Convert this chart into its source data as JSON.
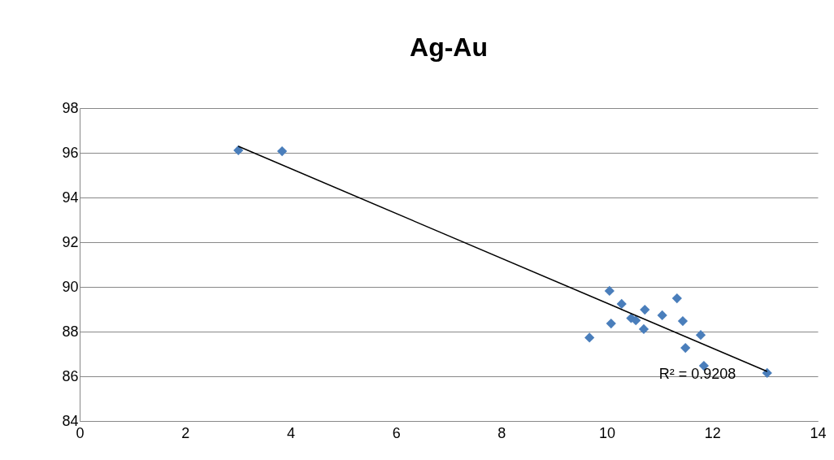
{
  "chart_data": {
    "type": "scatter",
    "title": "Ag-Au",
    "grid": "y",
    "xlim": [
      0,
      14
    ],
    "xticks": [
      0,
      2,
      4,
      6,
      8,
      10,
      12,
      14
    ],
    "ylim": [
      84,
      98
    ],
    "yticks": [
      84,
      86,
      88,
      90,
      92,
      94,
      96,
      98
    ],
    "series": [
      {
        "marker": "diamond",
        "color": "#4a7ebb",
        "x": [
          3.01,
          3.84,
          10.05,
          10.28,
          10.08,
          9.67,
          10.46,
          10.55,
          10.72,
          10.7,
          11.05,
          11.33,
          11.44,
          11.49,
          11.78,
          11.84,
          13.04
        ],
        "values": [
          96.11,
          96.07,
          89.82,
          89.24,
          88.36,
          87.73,
          88.6,
          88.5,
          88.98,
          88.11,
          88.73,
          89.49,
          88.47,
          87.27,
          87.85,
          86.47,
          86.15
        ]
      },
      {
        "type": "line",
        "color": "#000000",
        "x": [
          3.01,
          13.04
        ],
        "values": [
          96.29,
          86.22
        ]
      }
    ],
    "annotations": [
      "R² = 0.9208"
    ]
  }
}
